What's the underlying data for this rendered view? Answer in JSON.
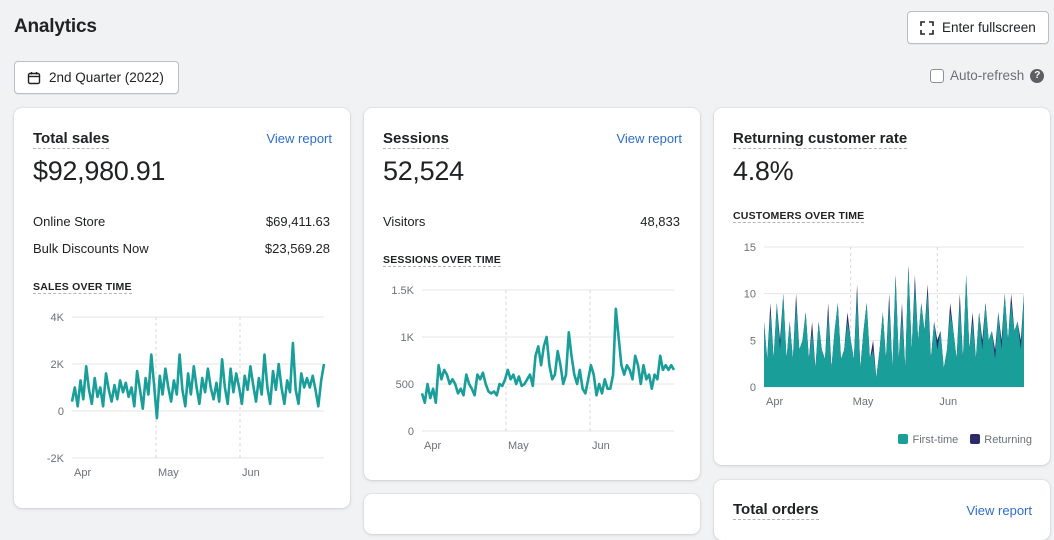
{
  "header": {
    "title": "Analytics",
    "fullscreen_label": "Enter fullscreen"
  },
  "toolbar": {
    "date_label": "2nd Quarter (2022)",
    "autorefresh_label": "Auto-refresh",
    "help_glyph": "?"
  },
  "colors": {
    "teal": "#1a9e9a",
    "navy": "#2c2a6b",
    "link": "#2c6ecb"
  },
  "cards": {
    "total_sales": {
      "title": "Total sales",
      "view": "View report",
      "value": "$92,980.91",
      "rows": [
        {
          "label": "Online Store",
          "value": "$69,411.63"
        },
        {
          "label": "Bulk Discounts Now",
          "value": "$23,569.28"
        }
      ],
      "chart_title": "SALES OVER TIME"
    },
    "sessions": {
      "title": "Sessions",
      "view": "View report",
      "value": "52,524",
      "rows": [
        {
          "label": "Visitors",
          "value": "48,833"
        }
      ],
      "chart_title": "SESSIONS OVER TIME"
    },
    "returning": {
      "title": "Returning customer rate",
      "value": "4.8%",
      "chart_title": "CUSTOMERS OVER TIME",
      "legend": [
        "First-time",
        "Returning"
      ]
    },
    "total_orders": {
      "title": "Total orders",
      "view": "View report"
    }
  },
  "chart_data": [
    {
      "type": "line",
      "title": "SALES OVER TIME",
      "y_ticks": [
        "4K",
        "2K",
        "0",
        "-2K"
      ],
      "x_ticks": [
        "Apr",
        "May",
        "Jun"
      ],
      "ylim": [
        -2000,
        4000
      ],
      "series_color": "#1a9e9a",
      "values": [
        400,
        1000,
        200,
        1300,
        500,
        1900,
        900,
        300,
        1400,
        600,
        1000,
        200,
        1600,
        900,
        400,
        1100,
        500,
        1300,
        800,
        1200,
        600,
        1000,
        200,
        1700,
        900,
        100,
        1400,
        700,
        2400,
        1100,
        -300,
        1500,
        700,
        1800,
        1000,
        400,
        1300,
        700,
        2400,
        900,
        200,
        1600,
        700,
        1900,
        1000,
        300,
        1400,
        800,
        1800,
        1000,
        500,
        1200,
        400,
        2200,
        1000,
        300,
        1800,
        800,
        1600,
        1000,
        300,
        1500,
        900,
        1900,
        1100,
        400,
        1400,
        700,
        2400,
        1000,
        300,
        1700,
        900,
        2000,
        1000,
        300,
        1300,
        800,
        2900,
        900,
        300,
        1600,
        1000,
        1400,
        1000,
        1500,
        900,
        200,
        1300,
        2000
      ]
    },
    {
      "type": "line",
      "title": "SESSIONS OVER TIME",
      "y_ticks": [
        "1.5K",
        "1K",
        "500",
        "0"
      ],
      "x_ticks": [
        "Apr",
        "May",
        "Jun"
      ],
      "ylim": [
        0,
        1500
      ],
      "series_color": "#1a9e9a",
      "values": [
        400,
        300,
        500,
        350,
        450,
        300,
        700,
        550,
        650,
        600,
        500,
        550,
        500,
        400,
        450,
        380,
        600,
        500,
        450,
        380,
        600,
        550,
        620,
        500,
        420,
        400,
        420,
        380,
        500,
        480,
        550,
        650,
        550,
        600,
        500,
        580,
        480,
        500,
        550,
        600,
        480,
        800,
        900,
        700,
        900,
        1000,
        700,
        550,
        600,
        850,
        700,
        500,
        600,
        1050,
        800,
        600,
        500,
        650,
        450,
        400,
        550,
        700,
        600,
        380,
        500,
        400,
        550,
        450,
        450,
        600,
        1300,
        1000,
        700,
        600,
        700,
        650,
        550,
        800,
        700,
        500,
        700,
        550,
        600,
        450,
        600,
        550,
        800,
        650,
        700,
        650,
        700,
        650
      ]
    },
    {
      "type": "area",
      "title": "CUSTOMERS OVER TIME",
      "y_ticks": [
        "15",
        "10",
        "5",
        "0"
      ],
      "x_ticks": [
        "Apr",
        "May",
        "Jun"
      ],
      "ylim": [
        0,
        15
      ],
      "series": [
        {
          "name": "First-time",
          "color": "#1a9e9a",
          "values": [
            7,
            3,
            8,
            3,
            9,
            4,
            10,
            3,
            7,
            3,
            9,
            4,
            5,
            8,
            3,
            6,
            2,
            7,
            4,
            3,
            8,
            2,
            6,
            9,
            3,
            4,
            7,
            5,
            3,
            10,
            2,
            6,
            9,
            3,
            4,
            1,
            4,
            8,
            3,
            9,
            2,
            12,
            3,
            8,
            2,
            13,
            4,
            11,
            5,
            9,
            6,
            10,
            3,
            7,
            4,
            6,
            2,
            4,
            8,
            6,
            3,
            9,
            3,
            12,
            4,
            7,
            3,
            8,
            4,
            9,
            5,
            6,
            3,
            8,
            4,
            10,
            5,
            9,
            6,
            7,
            4,
            10
          ]
        },
        {
          "name": "Returning",
          "color": "#2c2a6b",
          "values": [
            0,
            0,
            1,
            0,
            0,
            1,
            0,
            0,
            0,
            0,
            1,
            0,
            0,
            0,
            0,
            1,
            0,
            0,
            0,
            0,
            1,
            0,
            0,
            0,
            0,
            0,
            1,
            0,
            0,
            1,
            0,
            0,
            0,
            0,
            1,
            0,
            0,
            0,
            0,
            1,
            0,
            0,
            0,
            1,
            0,
            0,
            0,
            1,
            0,
            0,
            0,
            1,
            0,
            0,
            1,
            0,
            0,
            0,
            1,
            0,
            0,
            1,
            0,
            0,
            0,
            1,
            0,
            0,
            1,
            0,
            0,
            0,
            1,
            0,
            1,
            0,
            0,
            1,
            0,
            0,
            1,
            0
          ]
        }
      ]
    }
  ]
}
